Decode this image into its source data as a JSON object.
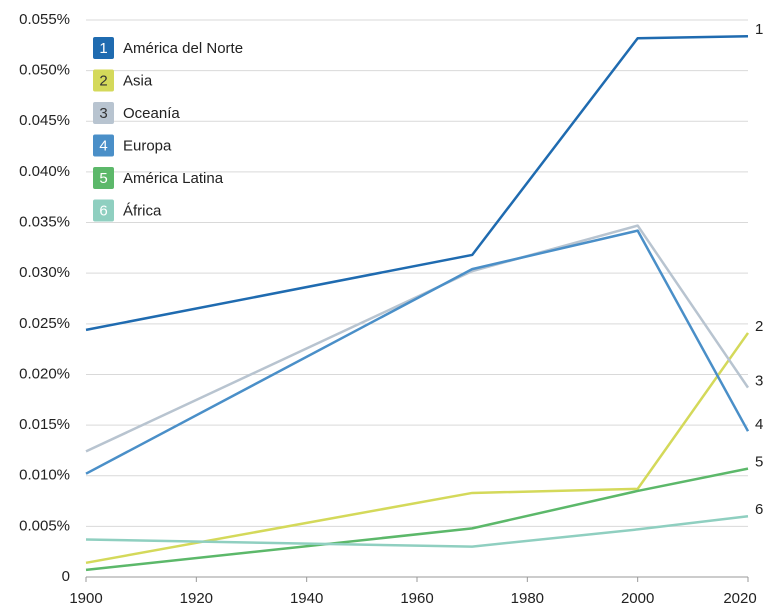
{
  "chart_data": {
    "type": "line",
    "x": [
      1900,
      1970,
      2000,
      2020
    ],
    "xlim": [
      1900,
      2020
    ],
    "xticks": [
      1900,
      1920,
      1940,
      1960,
      1980,
      2000,
      2020
    ],
    "ylim": [
      0,
      0.055
    ],
    "yticks": [
      0,
      {
        "value": 0.005,
        "label": "0.005%"
      },
      {
        "value": 0.01,
        "label": "0.010%"
      },
      {
        "value": 0.015,
        "label": "0.015%"
      },
      {
        "value": 0.02,
        "label": "0.020%"
      },
      {
        "value": 0.025,
        "label": "0.025%"
      },
      {
        "value": 0.03,
        "label": "0.030%"
      },
      {
        "value": 0.035,
        "label": "0.035%"
      },
      {
        "value": 0.04,
        "label": "0.040%"
      },
      {
        "value": 0.045,
        "label": "0.045%"
      },
      {
        "value": 0.05,
        "label": "0.050%"
      },
      {
        "value": 0.055,
        "label": "0.055%"
      }
    ],
    "grid": true,
    "legend": "top-left",
    "series": [
      {
        "key": "1",
        "name": "América del Norte",
        "color": "#1f6bb0",
        "values": [
          0.0244,
          0.0318,
          0.0532,
          0.0534
        ]
      },
      {
        "key": "2",
        "name": "Asia",
        "color": "#d4d95a",
        "values": [
          0.0014,
          0.0083,
          0.0087,
          0.0241
        ]
      },
      {
        "key": "3",
        "name": "Oceanía",
        "color": "#b8c4d0",
        "values": [
          0.0124,
          0.0302,
          0.0347,
          0.0187
        ]
      },
      {
        "key": "4",
        "name": "Europa",
        "color": "#4a8fc8",
        "values": [
          0.0102,
          0.0304,
          0.0342,
          0.0144
        ]
      },
      {
        "key": "5",
        "name": "América Latina",
        "color": "#5cb86a",
        "values": [
          0.0007,
          0.0048,
          0.0085,
          0.0107
        ]
      },
      {
        "key": "6",
        "name": "África",
        "color": "#8fcfc0",
        "values": [
          0.0037,
          0.003,
          0.0047,
          0.006
        ]
      }
    ]
  }
}
